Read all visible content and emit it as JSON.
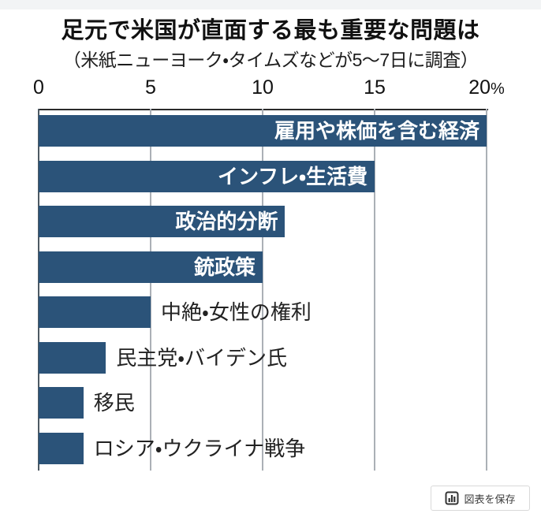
{
  "chart_data": {
    "type": "bar",
    "orientation": "horizontal",
    "title": "足元で米国が直面する最も重要な問題は",
    "subtitle": "（米紙ニューヨーク・タイムズなどが5～7日に調査）",
    "categories": [
      "雇用や株価を含む経済",
      "インフレ・生活費",
      "政治的分断",
      "銃政策",
      "中絶・女性の権利",
      "民主党・バイデン氏",
      "移民",
      "ロシア・ウクライナ戦争"
    ],
    "values": [
      20,
      15,
      11,
      10,
      5,
      3,
      2,
      2
    ],
    "label_inside": [
      true,
      true,
      true,
      true,
      false,
      false,
      false,
      false
    ],
    "unit": "%",
    "xlim": [
      0,
      20
    ],
    "x_ticks": [
      0,
      5,
      10,
      15,
      20
    ],
    "grid": true,
    "legend": "none",
    "bar_color": "#2b5379",
    "inside_label_color": "#ffffff",
    "outside_label_color": "#222222"
  },
  "save_button": {
    "icon": "bar-chart-icon",
    "label": "図表を保存"
  }
}
